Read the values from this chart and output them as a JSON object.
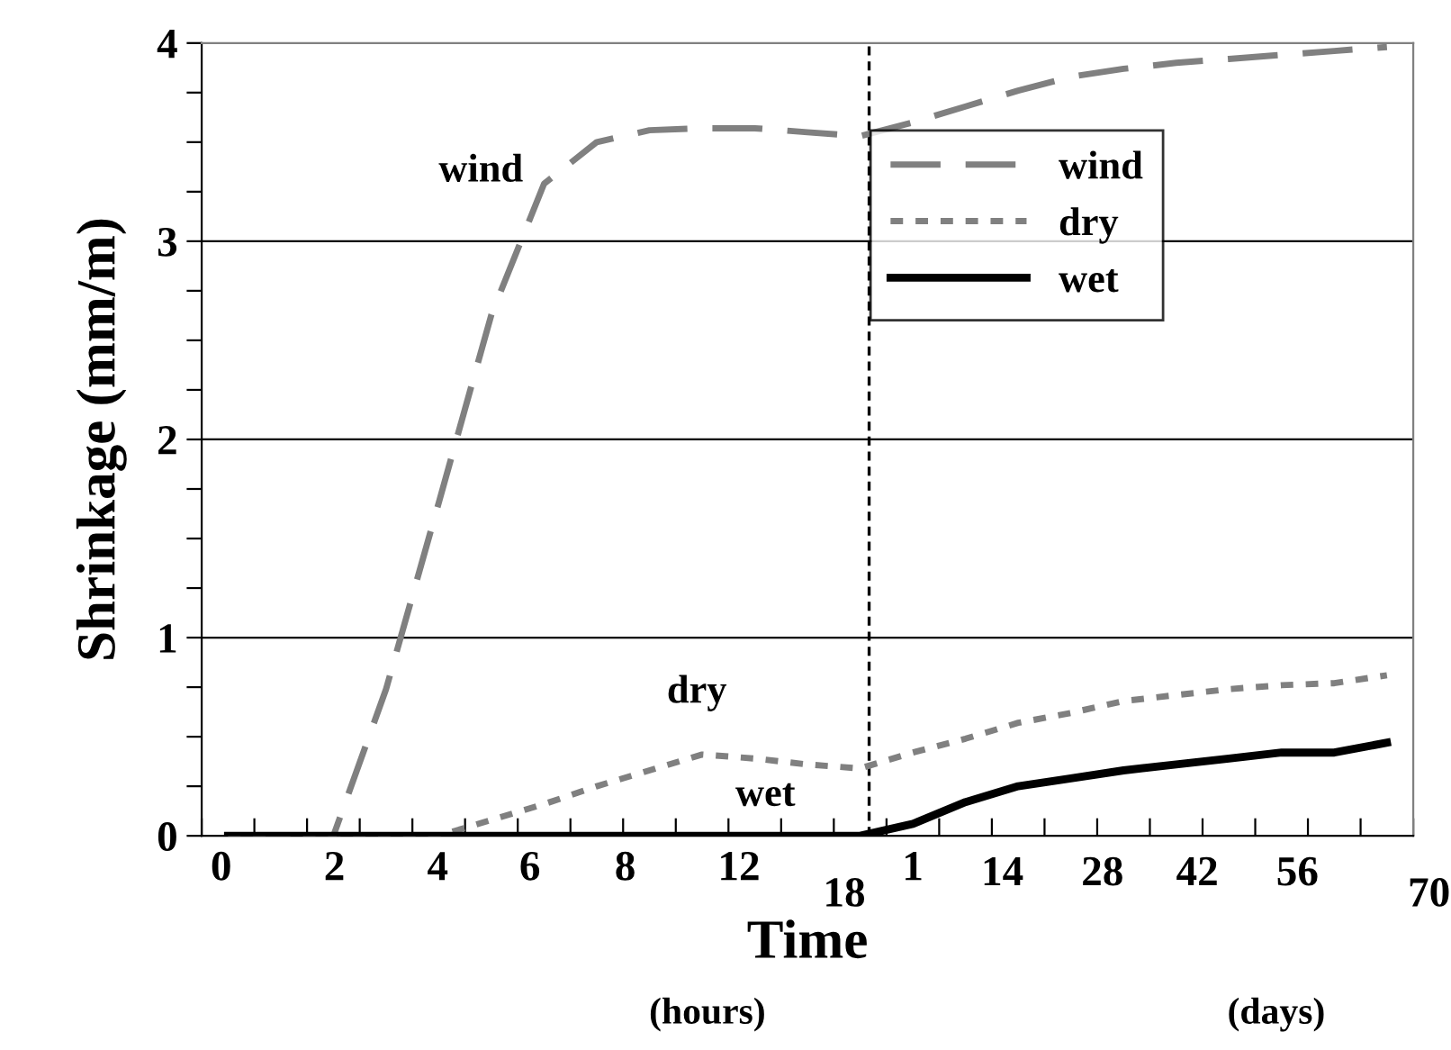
{
  "chart_data": {
    "type": "line",
    "xlabel": "Time",
    "ylabel": "Shrinkage (mm/m)",
    "categories": [
      null,
      null,
      null,
      null,
      null,
      null,
      null,
      null,
      null,
      null,
      null,
      null,
      null,
      null,
      null,
      null,
      null,
      null,
      null,
      null,
      null,
      null,
      null
    ],
    "ylim": [
      0,
      4
    ],
    "yticks": [
      0,
      {
        "value": 0.25,
        "label": null
      },
      {
        "value": 0.5,
        "label": null
      },
      {
        "value": 0.75,
        "label": null
      },
      1,
      {
        "value": 1.25,
        "label": null
      },
      {
        "value": 1.5,
        "label": null
      },
      {
        "value": 1.75,
        "label": null
      },
      2,
      {
        "value": 2.25,
        "label": null
      },
      {
        "value": 2.5,
        "label": null
      },
      {
        "value": 2.75,
        "label": null
      },
      3,
      {
        "value": 3.25,
        "label": null
      },
      {
        "value": 3.5,
        "label": null
      },
      {
        "value": 3.75,
        "label": null
      },
      4
    ],
    "grid": "y",
    "legend": "right",
    "series": [
      {
        "name": "wind",
        "color": "#808080",
        "line_style": "dashed",
        "values": [
          0,
          0,
          0,
          0.74,
          1.68,
          2.63,
          3.29,
          3.5,
          3.56,
          3.57,
          3.57,
          3.55,
          3.53,
          3.6,
          3.68,
          3.76,
          3.83,
          3.87,
          3.9,
          3.92,
          3.94,
          3.96,
          3.98
        ]
      },
      {
        "name": "dry",
        "color": "#808080",
        "line_style": "dotted",
        "values": [
          0,
          0,
          0,
          0,
          0,
          0.08,
          0.16,
          0.25,
          0.33,
          0.41,
          0.39,
          0.36,
          0.34,
          0.42,
          0.49,
          0.57,
          0.62,
          0.68,
          0.71,
          0.74,
          0.76,
          0.77,
          0.81
        ]
      },
      {
        "name": "wet",
        "color": "#000000",
        "line_style": "solid",
        "values": [
          0,
          0,
          0,
          0,
          0,
          0,
          0,
          0,
          0,
          0,
          0,
          0,
          0,
          0.06,
          0.17,
          0.25,
          0.29,
          0.33,
          0.36,
          0.39,
          0.42,
          0.42,
          0.47
        ]
      }
    ],
    "ref_lines": [
      {
        "axis": "x",
        "value": null,
        "label": null,
        "color": "#000000",
        "line_style": "dashed"
      }
    ],
    "annotations": [
      "wind",
      "dry",
      "wet",
      "0",
      "2",
      "4",
      "6",
      "8",
      "12",
      "18",
      "1",
      "14",
      "28",
      "42",
      "56",
      "70",
      "(hours)",
      "(days)"
    ]
  }
}
